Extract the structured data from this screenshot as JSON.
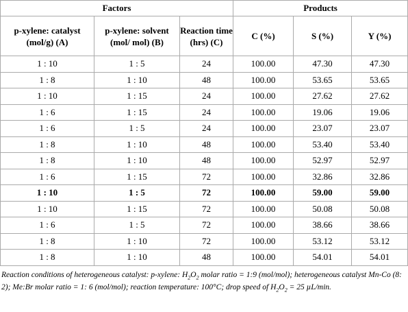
{
  "table": {
    "groups": [
      {
        "label": "Factors",
        "span": 3
      },
      {
        "label": "Products",
        "span": 3
      }
    ],
    "columns": [
      "p-xylene: catalyst (mol/g) (A)",
      "p-xylene: solvent (mol/ mol) (B)",
      "Reaction time (hrs) (C)",
      "C (%)",
      "S (%)",
      "Y (%)"
    ],
    "rows": [
      [
        "1 : 10",
        "1 : 5",
        "24",
        "100.00",
        "47.30",
        "47.30"
      ],
      [
        "1 : 8",
        "1 : 10",
        "48",
        "100.00",
        "53.65",
        "53.65"
      ],
      [
        "1 : 10",
        "1 : 15",
        "24",
        "100.00",
        "27.62",
        "27.62"
      ],
      [
        "1 : 6",
        "1 : 15",
        "24",
        "100.00",
        "19.06",
        "19.06"
      ],
      [
        "1 : 6",
        "1 : 5",
        "24",
        "100.00",
        "23.07",
        "23.07"
      ],
      [
        "1 : 8",
        "1 : 10",
        "48",
        "100.00",
        "53.40",
        "53.40"
      ],
      [
        "1 : 8",
        "1 : 10",
        "48",
        "100.00",
        "52.97",
        "52.97"
      ],
      [
        "1 : 6",
        "1 : 15",
        "72",
        "100.00",
        "32.86",
        "32.86"
      ],
      [
        "1 : 10",
        "1 : 5",
        "72",
        "100.00",
        "59.00",
        "59.00"
      ],
      [
        "1 : 10",
        "1 : 15",
        "72",
        "100.00",
        "50.08",
        "50.08"
      ],
      [
        "1 : 6",
        "1 : 5",
        "72",
        "100.00",
        "38.66",
        "38.66"
      ],
      [
        "1 : 8",
        "1 : 10",
        "72",
        "100.00",
        "53.12",
        "53.12"
      ],
      [
        "1 : 8",
        "1 : 10",
        "48",
        "100.00",
        "54.01",
        "54.01"
      ]
    ],
    "bold_row": 8
  },
  "footnote": [
    "Reaction conditions of heterogeneous catalyst: p-xylene: H",
    {
      "sub": "2"
    },
    "O",
    {
      "sub": "2"
    },
    " molar ratio = 1:9 (mol/mol); heterogeneous catalyst Mn-Co (8: 2); Me:Br molar ratio = 1: 6 (mol/mol); reaction temperature: 100°C; drop speed of H",
    {
      "sub": "2"
    },
    "O",
    {
      "sub": "2"
    },
    " = 25 µL/min."
  ]
}
